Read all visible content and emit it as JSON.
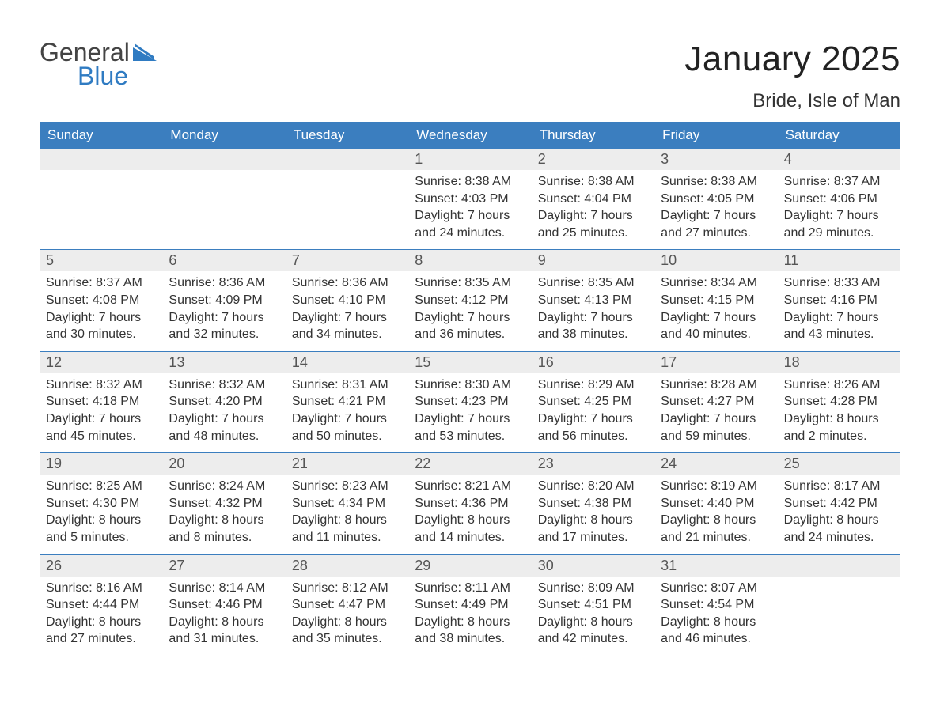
{
  "logo": {
    "word1": "General",
    "word2": "Blue",
    "mark_color": "#2f7bc2"
  },
  "title": "January 2025",
  "location": "Bride, Isle of Man",
  "colors": {
    "header_bg": "#3b7ebf",
    "header_text": "#ffffff",
    "daynum_bg": "#ededed",
    "border": "#3b7ebf",
    "body_text": "#333333"
  },
  "day_names": [
    "Sunday",
    "Monday",
    "Tuesday",
    "Wednesday",
    "Thursday",
    "Friday",
    "Saturday"
  ],
  "weeks": [
    [
      {
        "n": "",
        "sunrise": "",
        "sunset": "",
        "daylight": ""
      },
      {
        "n": "",
        "sunrise": "",
        "sunset": "",
        "daylight": ""
      },
      {
        "n": "",
        "sunrise": "",
        "sunset": "",
        "daylight": ""
      },
      {
        "n": "1",
        "sunrise": "Sunrise: 8:38 AM",
        "sunset": "Sunset: 4:03 PM",
        "daylight": "Daylight: 7 hours and 24 minutes."
      },
      {
        "n": "2",
        "sunrise": "Sunrise: 8:38 AM",
        "sunset": "Sunset: 4:04 PM",
        "daylight": "Daylight: 7 hours and 25 minutes."
      },
      {
        "n": "3",
        "sunrise": "Sunrise: 8:38 AM",
        "sunset": "Sunset: 4:05 PM",
        "daylight": "Daylight: 7 hours and 27 minutes."
      },
      {
        "n": "4",
        "sunrise": "Sunrise: 8:37 AM",
        "sunset": "Sunset: 4:06 PM",
        "daylight": "Daylight: 7 hours and 29 minutes."
      }
    ],
    [
      {
        "n": "5",
        "sunrise": "Sunrise: 8:37 AM",
        "sunset": "Sunset: 4:08 PM",
        "daylight": "Daylight: 7 hours and 30 minutes."
      },
      {
        "n": "6",
        "sunrise": "Sunrise: 8:36 AM",
        "sunset": "Sunset: 4:09 PM",
        "daylight": "Daylight: 7 hours and 32 minutes."
      },
      {
        "n": "7",
        "sunrise": "Sunrise: 8:36 AM",
        "sunset": "Sunset: 4:10 PM",
        "daylight": "Daylight: 7 hours and 34 minutes."
      },
      {
        "n": "8",
        "sunrise": "Sunrise: 8:35 AM",
        "sunset": "Sunset: 4:12 PM",
        "daylight": "Daylight: 7 hours and 36 minutes."
      },
      {
        "n": "9",
        "sunrise": "Sunrise: 8:35 AM",
        "sunset": "Sunset: 4:13 PM",
        "daylight": "Daylight: 7 hours and 38 minutes."
      },
      {
        "n": "10",
        "sunrise": "Sunrise: 8:34 AM",
        "sunset": "Sunset: 4:15 PM",
        "daylight": "Daylight: 7 hours and 40 minutes."
      },
      {
        "n": "11",
        "sunrise": "Sunrise: 8:33 AM",
        "sunset": "Sunset: 4:16 PM",
        "daylight": "Daylight: 7 hours and 43 minutes."
      }
    ],
    [
      {
        "n": "12",
        "sunrise": "Sunrise: 8:32 AM",
        "sunset": "Sunset: 4:18 PM",
        "daylight": "Daylight: 7 hours and 45 minutes."
      },
      {
        "n": "13",
        "sunrise": "Sunrise: 8:32 AM",
        "sunset": "Sunset: 4:20 PM",
        "daylight": "Daylight: 7 hours and 48 minutes."
      },
      {
        "n": "14",
        "sunrise": "Sunrise: 8:31 AM",
        "sunset": "Sunset: 4:21 PM",
        "daylight": "Daylight: 7 hours and 50 minutes."
      },
      {
        "n": "15",
        "sunrise": "Sunrise: 8:30 AM",
        "sunset": "Sunset: 4:23 PM",
        "daylight": "Daylight: 7 hours and 53 minutes."
      },
      {
        "n": "16",
        "sunrise": "Sunrise: 8:29 AM",
        "sunset": "Sunset: 4:25 PM",
        "daylight": "Daylight: 7 hours and 56 minutes."
      },
      {
        "n": "17",
        "sunrise": "Sunrise: 8:28 AM",
        "sunset": "Sunset: 4:27 PM",
        "daylight": "Daylight: 7 hours and 59 minutes."
      },
      {
        "n": "18",
        "sunrise": "Sunrise: 8:26 AM",
        "sunset": "Sunset: 4:28 PM",
        "daylight": "Daylight: 8 hours and 2 minutes."
      }
    ],
    [
      {
        "n": "19",
        "sunrise": "Sunrise: 8:25 AM",
        "sunset": "Sunset: 4:30 PM",
        "daylight": "Daylight: 8 hours and 5 minutes."
      },
      {
        "n": "20",
        "sunrise": "Sunrise: 8:24 AM",
        "sunset": "Sunset: 4:32 PM",
        "daylight": "Daylight: 8 hours and 8 minutes."
      },
      {
        "n": "21",
        "sunrise": "Sunrise: 8:23 AM",
        "sunset": "Sunset: 4:34 PM",
        "daylight": "Daylight: 8 hours and 11 minutes."
      },
      {
        "n": "22",
        "sunrise": "Sunrise: 8:21 AM",
        "sunset": "Sunset: 4:36 PM",
        "daylight": "Daylight: 8 hours and 14 minutes."
      },
      {
        "n": "23",
        "sunrise": "Sunrise: 8:20 AM",
        "sunset": "Sunset: 4:38 PM",
        "daylight": "Daylight: 8 hours and 17 minutes."
      },
      {
        "n": "24",
        "sunrise": "Sunrise: 8:19 AM",
        "sunset": "Sunset: 4:40 PM",
        "daylight": "Daylight: 8 hours and 21 minutes."
      },
      {
        "n": "25",
        "sunrise": "Sunrise: 8:17 AM",
        "sunset": "Sunset: 4:42 PM",
        "daylight": "Daylight: 8 hours and 24 minutes."
      }
    ],
    [
      {
        "n": "26",
        "sunrise": "Sunrise: 8:16 AM",
        "sunset": "Sunset: 4:44 PM",
        "daylight": "Daylight: 8 hours and 27 minutes."
      },
      {
        "n": "27",
        "sunrise": "Sunrise: 8:14 AM",
        "sunset": "Sunset: 4:46 PM",
        "daylight": "Daylight: 8 hours and 31 minutes."
      },
      {
        "n": "28",
        "sunrise": "Sunrise: 8:12 AM",
        "sunset": "Sunset: 4:47 PM",
        "daylight": "Daylight: 8 hours and 35 minutes."
      },
      {
        "n": "29",
        "sunrise": "Sunrise: 8:11 AM",
        "sunset": "Sunset: 4:49 PM",
        "daylight": "Daylight: 8 hours and 38 minutes."
      },
      {
        "n": "30",
        "sunrise": "Sunrise: 8:09 AM",
        "sunset": "Sunset: 4:51 PM",
        "daylight": "Daylight: 8 hours and 42 minutes."
      },
      {
        "n": "31",
        "sunrise": "Sunrise: 8:07 AM",
        "sunset": "Sunset: 4:54 PM",
        "daylight": "Daylight: 8 hours and 46 minutes."
      },
      {
        "n": "",
        "sunrise": "",
        "sunset": "",
        "daylight": ""
      }
    ]
  ]
}
